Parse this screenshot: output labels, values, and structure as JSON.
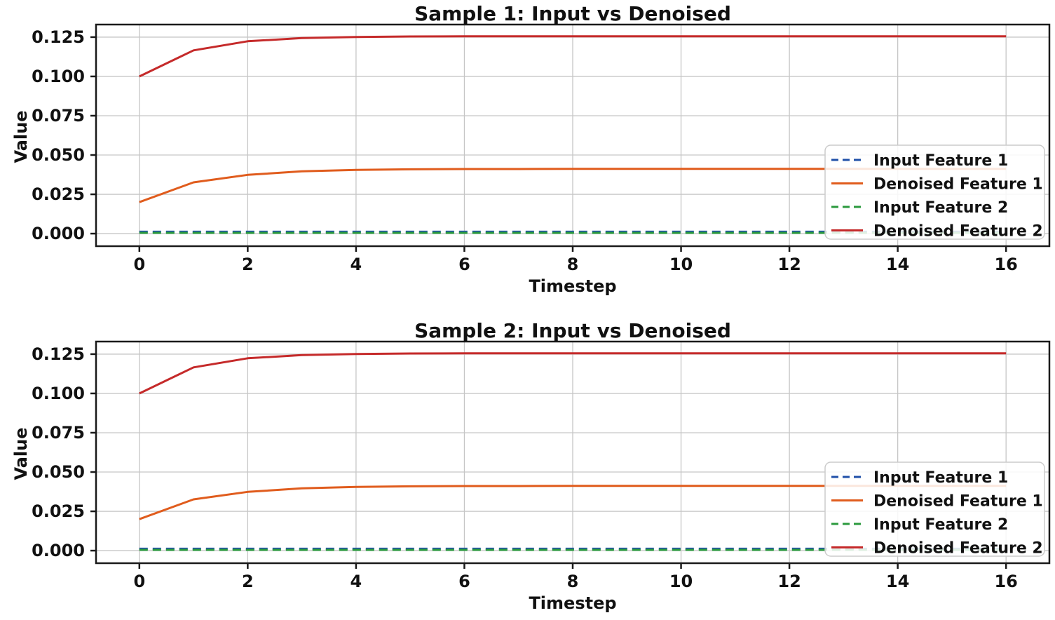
{
  "figure": {
    "background": "#ffffff",
    "text_color": "#111111",
    "grid_color": "#c6c6c6",
    "spine_color": "#1a1a1a",
    "legend_bg": "rgba(255,255,255,0.85)",
    "legend_border": "#cccccc"
  },
  "chart_data": [
    {
      "type": "line",
      "title": "Sample 1: Input vs Denoised",
      "xlabel": "Timestep",
      "ylabel": "Value",
      "xlim": [
        -0.8,
        16.8
      ],
      "ylim": [
        -0.008,
        0.133
      ],
      "grid": true,
      "legend_position": "lower right",
      "xticks": [
        0,
        2,
        4,
        6,
        8,
        10,
        12,
        14,
        16
      ],
      "xtick_labels": [
        "0",
        "2",
        "4",
        "6",
        "8",
        "10",
        "12",
        "14",
        "16"
      ],
      "yticks": [
        0.0,
        0.025,
        0.05,
        0.075,
        0.1,
        0.125
      ],
      "ytick_labels": [
        "0.000",
        "0.025",
        "0.050",
        "0.075",
        "0.100",
        "0.125"
      ],
      "x": [
        0,
        1,
        2,
        3,
        4,
        5,
        6,
        7,
        8,
        9,
        10,
        11,
        12,
        13,
        14,
        15,
        16
      ],
      "series": [
        {
          "name": "Input Feature 1",
          "color": "#2050a8",
          "style": "dashed",
          "values": [
            0.0012,
            0.0012,
            0.0012,
            0.0012,
            0.0012,
            0.0012,
            0.0012,
            0.0012,
            0.0012,
            0.0012,
            0.0012,
            0.0012,
            0.0012,
            0.0012,
            0.0012,
            0.0012,
            0.0012
          ]
        },
        {
          "name": "Denoised Feature 1",
          "color": "#e05c1d",
          "style": "solid",
          "values": [
            0.02,
            0.0326,
            0.0374,
            0.0396,
            0.0405,
            0.0409,
            0.0411,
            0.0411,
            0.0412,
            0.0412,
            0.0412,
            0.0412,
            0.0412,
            0.0412,
            0.0412,
            0.0412,
            0.0412
          ]
        },
        {
          "name": "Input Feature 2",
          "color": "#2b9a3e",
          "style": "dashed",
          "values": [
            0.0005,
            0.0005,
            0.0005,
            0.0005,
            0.0005,
            0.0005,
            0.0005,
            0.0005,
            0.0005,
            0.0005,
            0.0005,
            0.0005,
            0.0005,
            0.0005,
            0.0005,
            0.0005,
            0.0005
          ]
        },
        {
          "name": "Denoised Feature 2",
          "color": "#c52a2a",
          "style": "solid",
          "values": [
            0.1,
            0.1166,
            0.1224,
            0.1244,
            0.1251,
            0.1254,
            0.1255,
            0.1255,
            0.1255,
            0.1255,
            0.1255,
            0.1255,
            0.1255,
            0.1255,
            0.1255,
            0.1255,
            0.1255
          ]
        }
      ]
    },
    {
      "type": "line",
      "title": "Sample 2: Input vs Denoised",
      "xlabel": "Timestep",
      "ylabel": "Value",
      "xlim": [
        -0.8,
        16.8
      ],
      "ylim": [
        -0.008,
        0.133
      ],
      "grid": true,
      "legend_position": "lower right",
      "xticks": [
        0,
        2,
        4,
        6,
        8,
        10,
        12,
        14,
        16
      ],
      "xtick_labels": [
        "0",
        "2",
        "4",
        "6",
        "8",
        "10",
        "12",
        "14",
        "16"
      ],
      "yticks": [
        0.0,
        0.025,
        0.05,
        0.075,
        0.1,
        0.125
      ],
      "ytick_labels": [
        "0.000",
        "0.025",
        "0.050",
        "0.075",
        "0.100",
        "0.125"
      ],
      "x": [
        0,
        1,
        2,
        3,
        4,
        5,
        6,
        7,
        8,
        9,
        10,
        11,
        12,
        13,
        14,
        15,
        16
      ],
      "series": [
        {
          "name": "Input Feature 1",
          "color": "#2050a8",
          "style": "dashed",
          "values": [
            0.0012,
            0.0012,
            0.0012,
            0.0012,
            0.0012,
            0.0012,
            0.0012,
            0.0012,
            0.0012,
            0.0012,
            0.0012,
            0.0012,
            0.0012,
            0.0012,
            0.0012,
            0.0012,
            0.0012
          ]
        },
        {
          "name": "Denoised Feature 1",
          "color": "#e05c1d",
          "style": "solid",
          "values": [
            0.02,
            0.0326,
            0.0374,
            0.0396,
            0.0405,
            0.0409,
            0.0411,
            0.0411,
            0.0412,
            0.0412,
            0.0412,
            0.0412,
            0.0412,
            0.0412,
            0.0412,
            0.0412,
            0.0412
          ]
        },
        {
          "name": "Input Feature 2",
          "color": "#2b9a3e",
          "style": "dashed",
          "values": [
            0.0005,
            0.0005,
            0.0005,
            0.0005,
            0.0005,
            0.0005,
            0.0005,
            0.0005,
            0.0005,
            0.0005,
            0.0005,
            0.0005,
            0.0005,
            0.0005,
            0.0005,
            0.0005,
            0.0005
          ]
        },
        {
          "name": "Denoised Feature 2",
          "color": "#c52a2a",
          "style": "solid",
          "values": [
            0.1,
            0.1166,
            0.1224,
            0.1244,
            0.1251,
            0.1254,
            0.1255,
            0.1255,
            0.1255,
            0.1255,
            0.1255,
            0.1255,
            0.1255,
            0.1255,
            0.1255,
            0.1255,
            0.1255
          ]
        }
      ]
    }
  ]
}
